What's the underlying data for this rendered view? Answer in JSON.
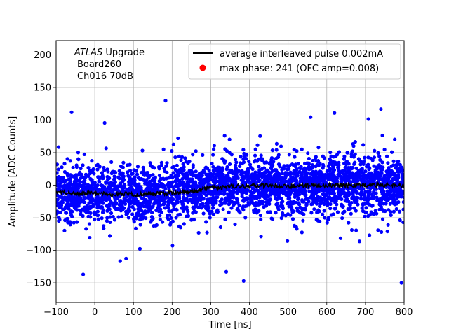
{
  "chart_data": {
    "type": "scatter",
    "title": "",
    "xlabel": "Time [ns]",
    "ylabel": "Amplitude [ADC Counts]",
    "xlim": [
      -100,
      800
    ],
    "ylim": [
      -180,
      222
    ],
    "xticks": [
      -100,
      0,
      100,
      200,
      300,
      400,
      500,
      600,
      700,
      800
    ],
    "yticks": [
      -150,
      -100,
      -50,
      0,
      50,
      100,
      150,
      200
    ],
    "grid": true,
    "legend_position": "top-right",
    "annotation": {
      "line1_italic": "ATLAS",
      "line1_rest": " Upgrade",
      "line2": "Board260",
      "line3": "Ch016 70dB"
    },
    "series": [
      {
        "name": "average interleaved pulse 0.002mA",
        "kind": "line",
        "color": "#000000",
        "x": [
          -100,
          0,
          100,
          200,
          250,
          300,
          350,
          400,
          500,
          600,
          700,
          800
        ],
        "y": [
          -11,
          -13,
          -14,
          -12,
          -9,
          -4,
          -2,
          -1,
          -1,
          0,
          0,
          0
        ]
      },
      {
        "name": "max phase: 241 (OFC amp=0.008)",
        "kind": "point",
        "color": "#ff0000",
        "x": [
          241
        ],
        "y": [
          0.008
        ]
      },
      {
        "name": "",
        "kind": "scatter",
        "color": "#0000ff",
        "noise_sigma": 22,
        "notable_points": [
          {
            "x": 183,
            "y": 130
          },
          {
            "x": 385,
            "y": -147
          },
          {
            "x": 793,
            "y": -150
          },
          {
            "x": -60,
            "y": 112
          },
          {
            "x": 620,
            "y": 111
          },
          {
            "x": 740,
            "y": 117
          },
          {
            "x": -30,
            "y": -137
          },
          {
            "x": 340,
            "y": -133
          }
        ]
      }
    ]
  }
}
